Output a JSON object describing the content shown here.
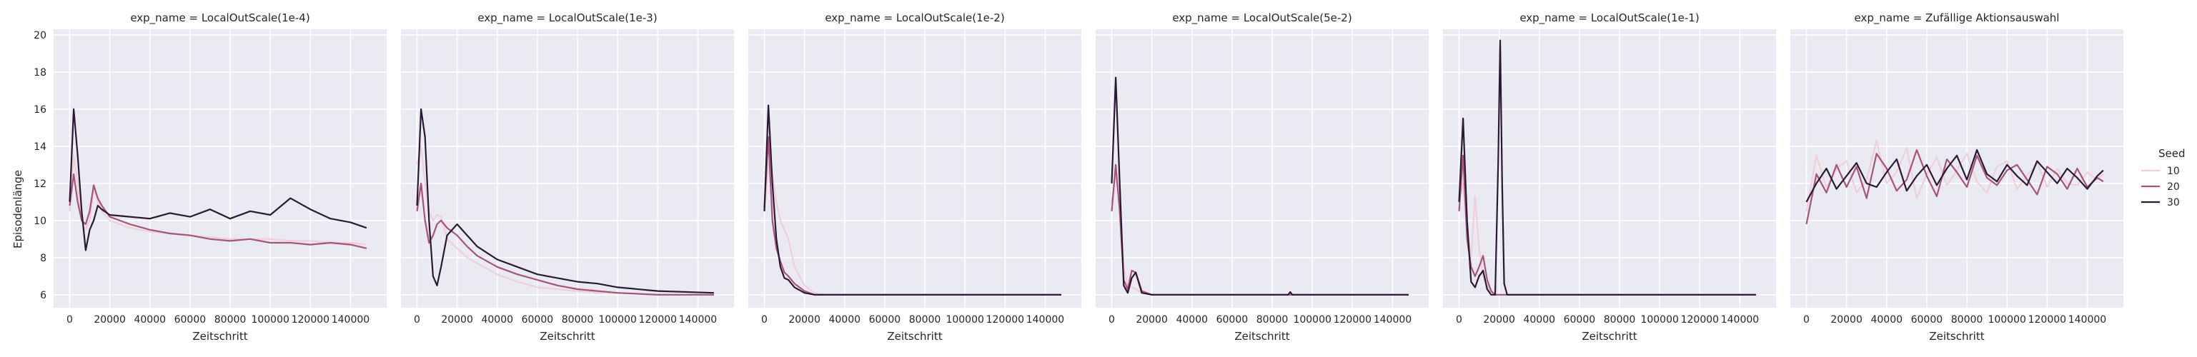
{
  "chart_data": {
    "type": "line",
    "ylabel": "Episodenlänge",
    "xlabel": "Zeitschritt",
    "xlim": [
      -8000,
      158000
    ],
    "ylim": [
      5.3,
      20.3
    ],
    "xticks": [
      0,
      20000,
      40000,
      60000,
      80000,
      100000,
      120000,
      140000
    ],
    "yticks": [
      6,
      8,
      10,
      12,
      14,
      16,
      18,
      20
    ],
    "grid": true,
    "legend": {
      "title": "Seed",
      "position": "right",
      "entries": [
        {
          "label": "10",
          "color": "#f1cfd5"
        },
        {
          "label": "20",
          "color": "#a9527a"
        },
        {
          "label": "30",
          "color": "#2b1836"
        }
      ]
    },
    "panels": [
      {
        "title": "exp_name = LocalOutScale(1e-4)",
        "series": [
          {
            "seed": "10",
            "color": "#f1cfd5",
            "x": [
              0,
              2000,
              4000,
              6000,
              8000,
              10000,
              12000,
              14000,
              16000,
              20000,
              30000,
              40000,
              50000,
              60000,
              70000,
              80000,
              90000,
              100000,
              110000,
              120000,
              130000,
              140000,
              148000
            ],
            "y": [
              10.5,
              13.5,
              12.0,
              10.0,
              9.5,
              10.0,
              11.8,
              11.0,
              10.5,
              10.0,
              9.6,
              9.4,
              9.3,
              9.2,
              9.1,
              9.0,
              9.0,
              9.0,
              8.9,
              8.9,
              8.8,
              8.8,
              8.7
            ]
          },
          {
            "seed": "20",
            "color": "#a9527a",
            "x": [
              0,
              2000,
              4000,
              6000,
              8000,
              10000,
              12000,
              14000,
              16000,
              20000,
              30000,
              40000,
              50000,
              60000,
              70000,
              80000,
              90000,
              100000,
              110000,
              120000,
              130000,
              140000,
              148000
            ],
            "y": [
              10.8,
              12.5,
              11.0,
              10.0,
              9.8,
              10.5,
              11.9,
              11.2,
              10.8,
              10.2,
              9.8,
              9.5,
              9.3,
              9.2,
              9.0,
              8.9,
              9.0,
              8.8,
              8.8,
              8.7,
              8.8,
              8.7,
              8.5
            ]
          },
          {
            "seed": "30",
            "color": "#2b1836",
            "x": [
              0,
              2000,
              4000,
              6000,
              8000,
              10000,
              12000,
              14000,
              16000,
              20000,
              30000,
              40000,
              50000,
              60000,
              70000,
              80000,
              90000,
              100000,
              110000,
              120000,
              130000,
              140000,
              148000
            ],
            "y": [
              11.0,
              16.0,
              13.5,
              10.5,
              8.4,
              9.5,
              10.0,
              10.8,
              10.6,
              10.3,
              10.2,
              10.1,
              10.4,
              10.2,
              10.6,
              10.1,
              10.5,
              10.3,
              11.2,
              10.6,
              10.1,
              9.9,
              9.6
            ]
          }
        ]
      },
      {
        "title": "exp_name = LocalOutScale(1e-3)",
        "series": [
          {
            "seed": "10",
            "color": "#f1cfd5",
            "x": [
              0,
              2000,
              4000,
              6000,
              8000,
              10000,
              12000,
              15000,
              20000,
              25000,
              30000,
              40000,
              50000,
              60000,
              70000,
              80000,
              90000,
              100000,
              120000,
              148000
            ],
            "y": [
              13.0,
              14.0,
              12.0,
              10.5,
              10.0,
              10.3,
              10.2,
              9.0,
              8.5,
              8.0,
              7.7,
              7.1,
              6.7,
              6.4,
              6.3,
              6.2,
              6.1,
              6.1,
              6.0,
              6.0
            ]
          },
          {
            "seed": "20",
            "color": "#a9527a",
            "x": [
              0,
              2000,
              4000,
              6000,
              8000,
              10000,
              12000,
              15000,
              20000,
              25000,
              30000,
              40000,
              50000,
              60000,
              70000,
              80000,
              90000,
              100000,
              120000,
              148000
            ],
            "y": [
              10.5,
              12.0,
              10.0,
              8.8,
              9.2,
              9.8,
              10.0,
              9.6,
              9.2,
              8.6,
              8.1,
              7.5,
              7.1,
              6.8,
              6.5,
              6.3,
              6.2,
              6.1,
              6.0,
              6.0
            ]
          },
          {
            "seed": "30",
            "color": "#2b1836",
            "x": [
              0,
              2000,
              4000,
              6000,
              8000,
              10000,
              12000,
              15000,
              20000,
              25000,
              30000,
              40000,
              50000,
              60000,
              70000,
              80000,
              90000,
              100000,
              120000,
              148000
            ],
            "y": [
              10.8,
              16.0,
              14.5,
              10.0,
              7.0,
              6.5,
              7.5,
              9.2,
              9.8,
              9.2,
              8.6,
              7.9,
              7.5,
              7.1,
              6.9,
              6.7,
              6.6,
              6.4,
              6.2,
              6.1
            ]
          }
        ]
      },
      {
        "title": "exp_name = LocalOutScale(1e-2)",
        "series": [
          {
            "seed": "10",
            "color": "#f1cfd5",
            "x": [
              0,
              2000,
              4000,
              6000,
              8000,
              10000,
              12000,
              15000,
              20000,
              25000,
              30000,
              40000,
              148000
            ],
            "y": [
              10.5,
              13.0,
              12.5,
              11.0,
              10.0,
              9.5,
              9.0,
              7.5,
              6.5,
              6.1,
              6.0,
              6.0,
              6.0
            ]
          },
          {
            "seed": "20",
            "color": "#a9527a",
            "x": [
              0,
              2000,
              4000,
              6000,
              8000,
              10000,
              12000,
              15000,
              20000,
              25000,
              30000,
              40000,
              148000
            ],
            "y": [
              10.7,
              14.5,
              10.0,
              8.5,
              7.8,
              7.2,
              7.0,
              6.6,
              6.2,
              6.0,
              6.0,
              6.0,
              6.0
            ]
          },
          {
            "seed": "30",
            "color": "#2b1836",
            "x": [
              0,
              2000,
              4000,
              6000,
              8000,
              10000,
              12000,
              15000,
              20000,
              25000,
              30000,
              40000,
              148000
            ],
            "y": [
              10.5,
              16.2,
              12.0,
              9.0,
              7.5,
              6.9,
              6.8,
              6.4,
              6.1,
              6.0,
              6.0,
              6.0,
              6.0
            ]
          }
        ]
      },
      {
        "title": "exp_name = LocalOutScale(5e-2)",
        "series": [
          {
            "seed": "10",
            "color": "#f1cfd5",
            "x": [
              0,
              2000,
              4000,
              6000,
              8000,
              10000,
              12000,
              15000,
              20000,
              30000,
              148000
            ],
            "y": [
              11.0,
              12.5,
              11.0,
              7.5,
              6.5,
              6.4,
              6.3,
              6.1,
              6.0,
              6.0,
              6.0
            ]
          },
          {
            "seed": "20",
            "color": "#a9527a",
            "x": [
              0,
              2000,
              4000,
              6000,
              8000,
              10000,
              12000,
              15000,
              20000,
              30000,
              148000
            ],
            "y": [
              10.5,
              13.0,
              10.5,
              6.8,
              6.3,
              7.3,
              7.2,
              6.2,
              6.0,
              6.0,
              6.0
            ]
          },
          {
            "seed": "30",
            "color": "#2b1836",
            "x": [
              0,
              2000,
              4000,
              6000,
              8000,
              10000,
              12000,
              15000,
              20000,
              30000,
              88000,
              89000,
              90000,
              148000
            ],
            "y": [
              12.0,
              17.7,
              12.0,
              6.5,
              6.1,
              6.9,
              7.2,
              6.1,
              6.0,
              6.0,
              6.0,
              6.15,
              6.0,
              6.0
            ]
          }
        ]
      },
      {
        "title": "exp_name = LocalOutScale(1e-1)",
        "series": [
          {
            "seed": "10",
            "color": "#f1cfd5",
            "x": [
              0,
              2000,
              4000,
              6000,
              8000,
              10000,
              12000,
              14000,
              16000,
              18000,
              20000,
              24000,
              148000
            ],
            "y": [
              11.0,
              12.0,
              9.5,
              8.0,
              11.3,
              8.5,
              7.0,
              6.5,
              6.2,
              6.0,
              6.0,
              6.0,
              6.0
            ]
          },
          {
            "seed": "20",
            "color": "#a9527a",
            "x": [
              0,
              2000,
              4000,
              6000,
              8000,
              10000,
              12000,
              14000,
              16000,
              18000,
              20000,
              24000,
              148000
            ],
            "y": [
              10.5,
              13.5,
              9.0,
              7.5,
              7.0,
              7.5,
              8.1,
              6.8,
              6.2,
              6.0,
              6.0,
              6.0,
              6.0
            ]
          },
          {
            "seed": "30",
            "color": "#2b1836",
            "x": [
              0,
              2000,
              4000,
              6000,
              8000,
              10000,
              12000,
              14000,
              16000,
              18000,
              19500,
              20500,
              21500,
              22500,
              24000,
              148000
            ],
            "y": [
              11.0,
              15.5,
              10.0,
              6.7,
              6.4,
              7.0,
              7.3,
              6.3,
              6.0,
              6.0,
              13.0,
              19.7,
              12.0,
              6.6,
              6.0,
              6.0
            ]
          }
        ]
      },
      {
        "title": "exp_name = Zufällige Aktionsauswahl",
        "series": [
          {
            "seed": "10",
            "color": "#f1cfd5",
            "x": [
              0,
              5000,
              10000,
              15000,
              20000,
              25000,
              30000,
              35000,
              40000,
              45000,
              50000,
              55000,
              60000,
              65000,
              70000,
              75000,
              80000,
              85000,
              90000,
              95000,
              100000,
              105000,
              110000,
              115000,
              120000,
              125000,
              130000,
              135000,
              140000,
              145000,
              148000
            ],
            "y": [
              10.5,
              13.5,
              11.8,
              12.8,
              13.2,
              11.5,
              12.2,
              14.3,
              12.0,
              12.6,
              13.9,
              11.2,
              12.5,
              13.4,
              11.9,
              12.7,
              13.6,
              12.1,
              11.5,
              12.9,
              13.2,
              11.7,
              12.4,
              13.1,
              11.8,
              12.8,
              12.0,
              11.9,
              12.6,
              12.2,
              12.5
            ]
          },
          {
            "seed": "20",
            "color": "#a9527a",
            "x": [
              0,
              5000,
              10000,
              15000,
              20000,
              25000,
              30000,
              35000,
              40000,
              45000,
              50000,
              55000,
              60000,
              65000,
              70000,
              75000,
              80000,
              85000,
              90000,
              95000,
              100000,
              105000,
              110000,
              115000,
              120000,
              125000,
              130000,
              135000,
              140000,
              145000,
              148000
            ],
            "y": [
              9.8,
              12.5,
              11.5,
              13.0,
              11.8,
              12.9,
              11.2,
              13.6,
              12.8,
              11.6,
              12.2,
              13.8,
              12.4,
              11.3,
              13.3,
              12.6,
              11.8,
              13.5,
              12.3,
              11.9,
              12.7,
              13.0,
              12.2,
              11.4,
              12.9,
              12.5,
              11.7,
              12.8,
              11.8,
              12.3,
              12.1
            ]
          },
          {
            "seed": "30",
            "color": "#2b1836",
            "x": [
              0,
              5000,
              10000,
              15000,
              20000,
              25000,
              30000,
              35000,
              40000,
              45000,
              50000,
              55000,
              60000,
              65000,
              70000,
              75000,
              80000,
              85000,
              90000,
              95000,
              100000,
              105000,
              110000,
              115000,
              120000,
              125000,
              130000,
              135000,
              140000,
              145000,
              148000
            ],
            "y": [
              11.0,
              12.0,
              12.8,
              11.7,
              12.4,
              13.1,
              12.0,
              11.8,
              12.6,
              13.3,
              11.6,
              12.4,
              13.0,
              11.9,
              12.8,
              13.5,
              12.2,
              13.8,
              12.5,
              12.1,
              13.0,
              12.4,
              11.9,
              13.2,
              12.6,
              12.0,
              12.8,
              12.3,
              11.7,
              12.4,
              12.7
            ]
          }
        ]
      }
    ]
  }
}
